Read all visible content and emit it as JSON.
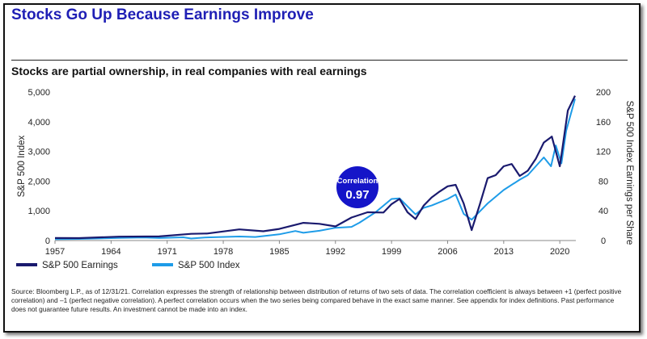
{
  "header": {
    "title": "Stocks Go Up Because Earnings Improve",
    "subtitle": "Stocks are partial ownership, in real companies with real earnings"
  },
  "footer": {
    "source": "Source: Bloomberg L.P., as of 12/31/21. Correlation expresses the strength of relationship between distribution of returns of two sets of data. The correlation coefficient is always between +1 (perfect positive correlation) and –1 (perfect negative correlation). A perfect correlation occurs when the two series being compared behave in the exact same manner. See appendix for index definitions. Past performance does not guarantee future results. An investment cannot be made into an index."
  },
  "chart_data": {
    "type": "line",
    "xlabel": "",
    "ylabel_left": "S&P 500 Index",
    "ylabel_right": "S&P 500 Index Earnings per Share",
    "ylim_left": [
      0,
      5000
    ],
    "ylim_right": [
      0,
      200
    ],
    "xlim": [
      1957,
      2022
    ],
    "x_ticks": [
      "1957",
      "1964",
      "1971",
      "1978",
      "1985",
      "1992",
      "1999",
      "2006",
      "2013",
      "2020"
    ],
    "y_ticks_left": [
      "0",
      "1,000",
      "2,000",
      "3,000",
      "4,000",
      "5,000"
    ],
    "y_ticks_right": [
      "0",
      "40",
      "80",
      "120",
      "160",
      "200"
    ],
    "legend_position": "bottom-left",
    "annotation": {
      "label": "Correlation",
      "value": "0.97"
    },
    "colors": {
      "earnings": "#1a1a6e",
      "index": "#1e9ce8",
      "badge": "#1515c8"
    },
    "series": [
      {
        "name": "S&P 500 Earnings",
        "axis": "right",
        "x": [
          1957,
          1960,
          1965,
          1970,
          1974,
          1976,
          1980,
          1983,
          1985,
          1988,
          1990,
          1992,
          1994,
          1996,
          1998,
          1999,
          2000,
          2001,
          2002,
          2003,
          2004,
          2005,
          2006,
          2007,
          2008,
          2009,
          2010,
          2011,
          2012,
          2013,
          2014,
          2015,
          2016,
          2017,
          2018,
          2019,
          2020,
          2021,
          2021.9
        ],
        "y": [
          3.4,
          3.3,
          5.2,
          5.5,
          9.0,
          9.5,
          15.0,
          12.5,
          15.7,
          23.8,
          22.5,
          19.0,
          31.0,
          38.0,
          37.7,
          49.0,
          56.0,
          38.0,
          29.0,
          47.0,
          58.0,
          66.0,
          73.0,
          75.0,
          50.0,
          14.0,
          48.0,
          84.0,
          88.0,
          100.0,
          103.0,
          87.0,
          94.0,
          110.0,
          132.0,
          140.0,
          100.0,
          175.0,
          195.0
        ]
      },
      {
        "name": "S&P 500 Index",
        "axis": "left",
        "x": [
          1957,
          1960,
          1965,
          1968,
          1970,
          1973,
          1974,
          1976,
          1980,
          1982,
          1985,
          1987,
          1988,
          1990,
          1992,
          1994,
          1995,
          1997,
          1999,
          2000,
          2001,
          2002,
          2003,
          2004,
          2006,
          2007,
          2008,
          2009,
          2011,
          2013,
          2015,
          2016,
          2018,
          2018.9,
          2019.5,
          2020.2,
          2020.8,
          2021.9
        ],
        "y": [
          45,
          55,
          90,
          100,
          85,
          110,
          68,
          105,
          135,
          120,
          210,
          320,
          260,
          330,
          430,
          460,
          600,
          950,
          1400,
          1420,
          1150,
          880,
          1100,
          1180,
          1400,
          1550,
          900,
          700,
          1250,
          1700,
          2050,
          2200,
          2800,
          2500,
          3200,
          2600,
          3700,
          4770
        ]
      }
    ]
  }
}
